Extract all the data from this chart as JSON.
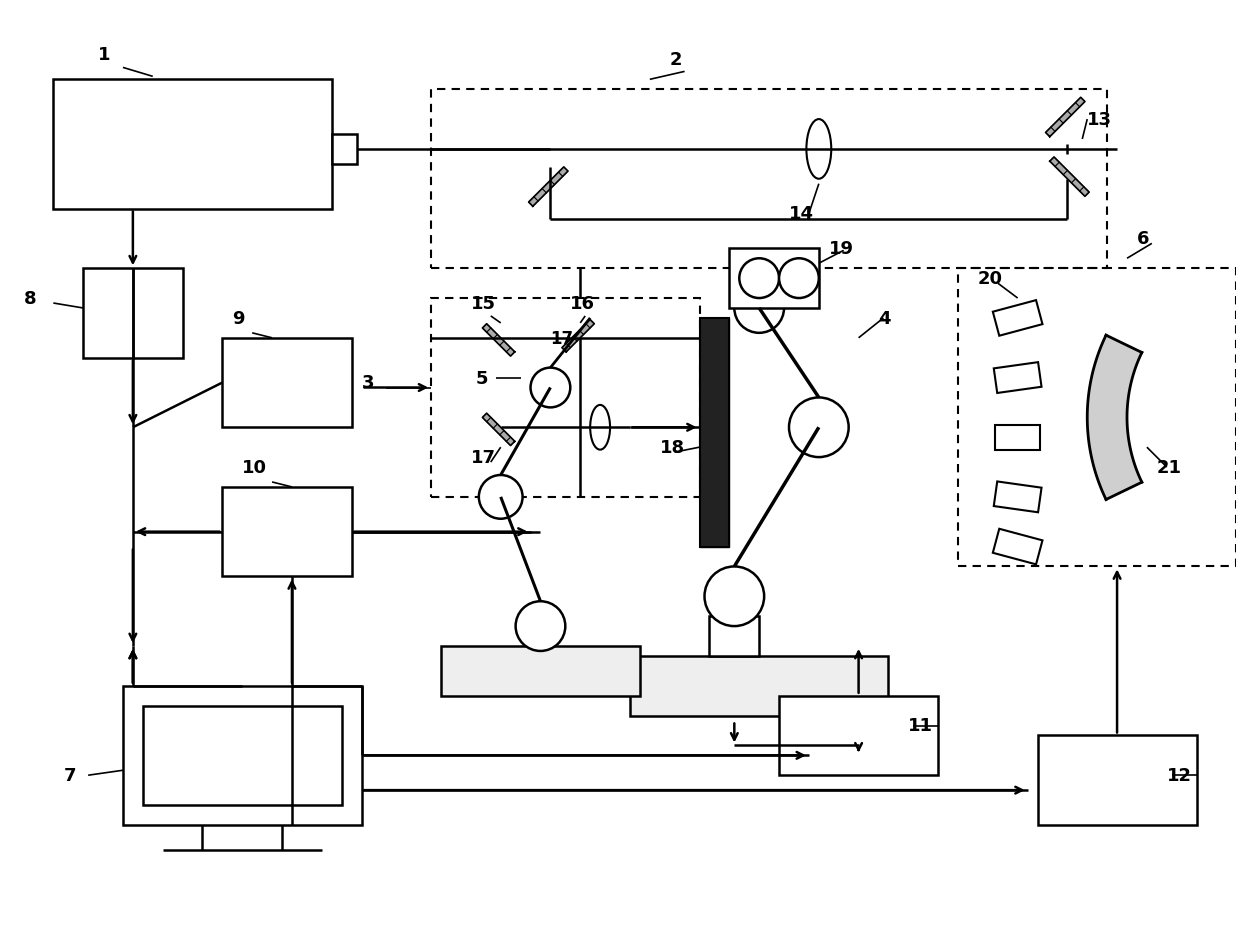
{
  "bg_color": "#ffffff",
  "line_color": "#000000",
  "fig_width": 12.4,
  "fig_height": 9.47,
  "label_fontsize": 13
}
